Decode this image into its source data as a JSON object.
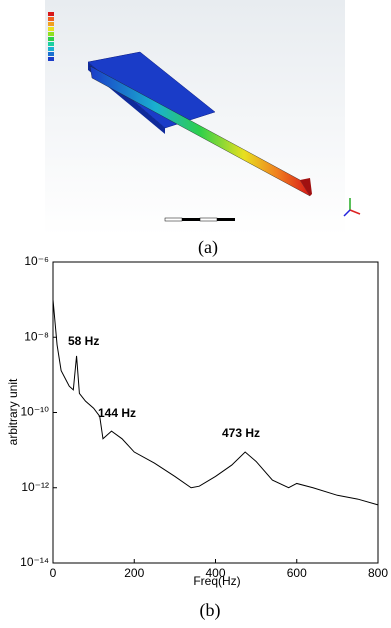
{
  "chart_data": {
    "type": "line",
    "log_y": true,
    "xlabel": "Freq(Hz)",
    "ylabel": "arbitrary unit",
    "captions": [
      "(a)",
      "(b)"
    ],
    "annotations": [
      "58 Hz",
      "144 Hz",
      "473 Hz"
    ],
    "x": [
      0,
      10,
      20,
      40,
      50,
      58,
      65,
      80,
      100,
      115,
      123,
      144,
      170,
      200,
      250,
      300,
      340,
      360,
      400,
      440,
      473,
      500,
      540,
      580,
      600,
      640,
      700,
      750,
      800
    ],
    "series": [
      {
        "color": "#000000",
        "values": [
          1e-07,
          6.3e-09,
          1.3e-09,
          5e-10,
          4e-10,
          3.2e-09,
          3.2e-10,
          2e-10,
          1.3e-10,
          7.9e-11,
          2e-11,
          3.2e-11,
          2e-11,
          8.9e-12,
          4.5e-12,
          2e-12,
          1e-12,
          1.1e-12,
          2e-12,
          4e-12,
          8.9e-12,
          5e-12,
          1.6e-12,
          1e-12,
          1.3e-12,
          1e-12,
          6.3e-13,
          5e-13,
          3.5e-13
        ]
      }
    ],
    "xlim": [
      0,
      800
    ],
    "xticks": [
      0,
      200,
      400,
      600,
      800
    ],
    "ylim": [
      1e-14,
      1e-06
    ],
    "yticks": [
      {
        "value": 1e-14,
        "label": "10⁻¹⁴"
      },
      {
        "value": 1e-12,
        "label": "10⁻¹²"
      },
      {
        "value": 1e-10,
        "label": "10⁻¹⁰"
      },
      {
        "value": 1e-08,
        "label": "10⁻⁸"
      },
      {
        "value": 1e-06,
        "label": "10⁻⁶"
      }
    ]
  }
}
